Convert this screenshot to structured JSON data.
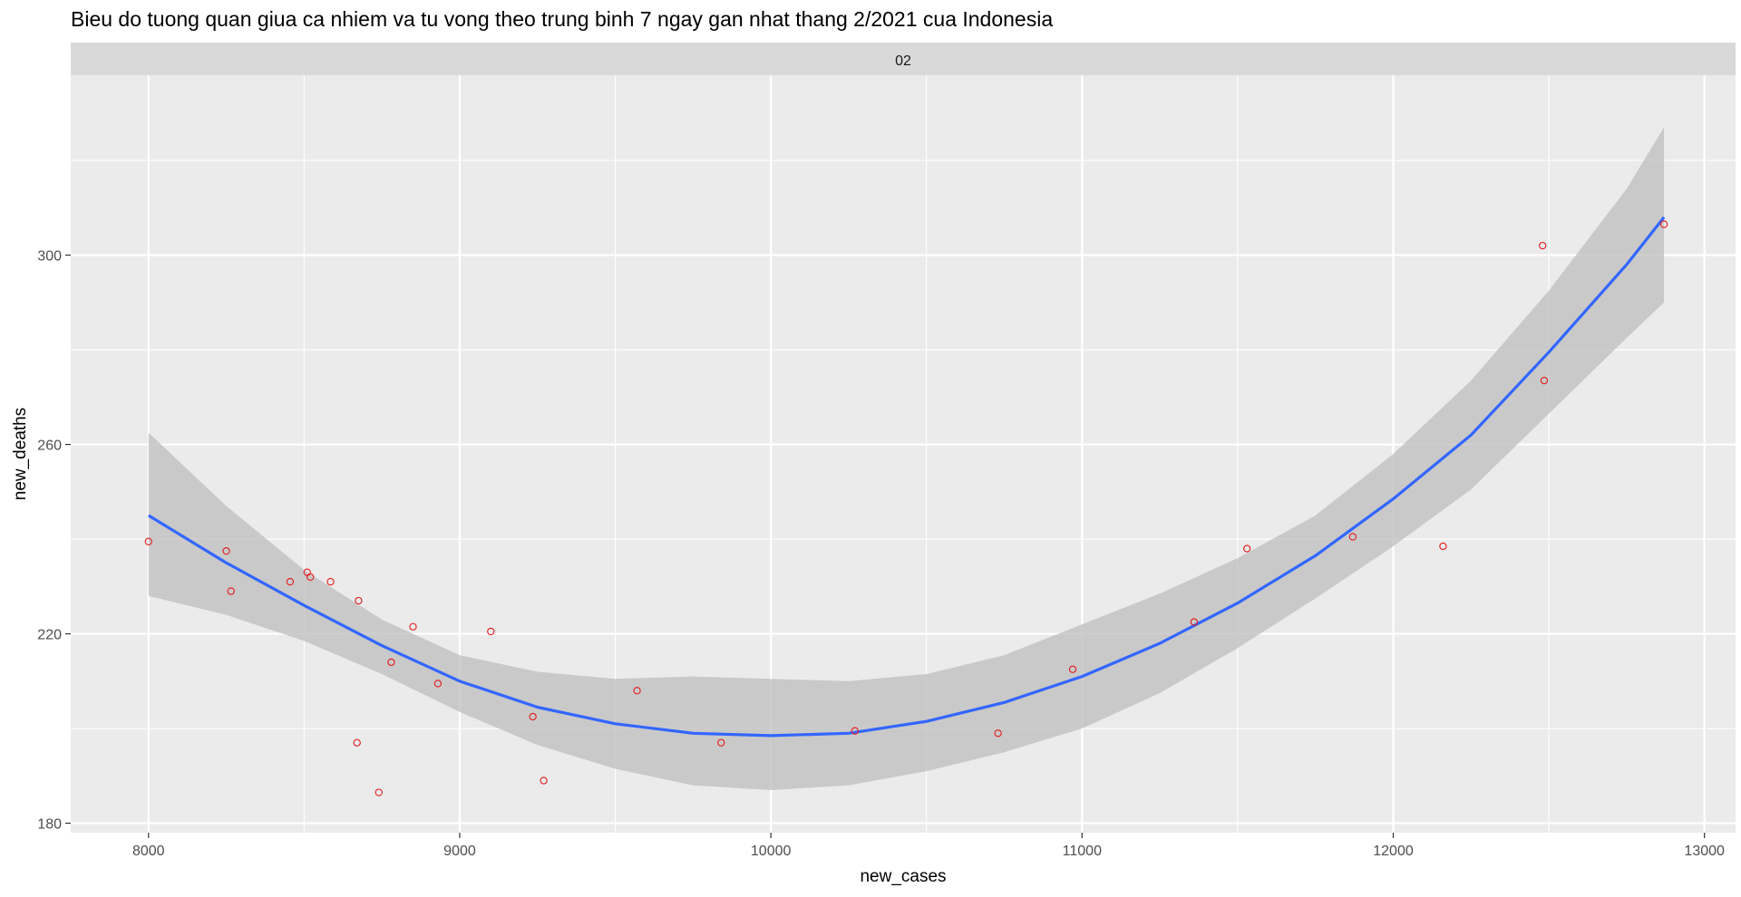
{
  "chart_data": {
    "type": "scatter",
    "title": "Bieu do tuong quan giua ca nhiem va tu vong theo trung binh 7 ngay gan nhat thang 2/2021 cua Indonesia",
    "facet_label": "02",
    "xlabel": "new_cases",
    "ylabel": "new_deaths",
    "xlim": [
      7750,
      13100
    ],
    "ylim": [
      178,
      338
    ],
    "x_ticks": [
      8000,
      9000,
      10000,
      11000,
      12000,
      13000
    ],
    "y_ticks": [
      180,
      220,
      260,
      300
    ],
    "grid": true,
    "colors": {
      "panel_bg": "#ebebeb",
      "strip_bg": "#d9d9d9",
      "grid_major": "#ffffff",
      "points": "#e31a1c",
      "smooth_line": "#3366ff",
      "ribbon": "#bdbdbd"
    },
    "points": [
      {
        "x": 8000,
        "y": 239.5
      },
      {
        "x": 8250,
        "y": 237.5
      },
      {
        "x": 8265,
        "y": 229
      },
      {
        "x": 8455,
        "y": 231
      },
      {
        "x": 8510,
        "y": 233
      },
      {
        "x": 8520,
        "y": 232
      },
      {
        "x": 8585,
        "y": 231
      },
      {
        "x": 8670,
        "y": 197
      },
      {
        "x": 8675,
        "y": 227
      },
      {
        "x": 8740,
        "y": 186.5
      },
      {
        "x": 8780,
        "y": 214
      },
      {
        "x": 8850,
        "y": 221.5
      },
      {
        "x": 8930,
        "y": 209.5
      },
      {
        "x": 9100,
        "y": 220.5
      },
      {
        "x": 9235,
        "y": 202.5
      },
      {
        "x": 9270,
        "y": 189
      },
      {
        "x": 9570,
        "y": 208
      },
      {
        "x": 9840,
        "y": 197
      },
      {
        "x": 10270,
        "y": 199.5
      },
      {
        "x": 10730,
        "y": 199
      },
      {
        "x": 10970,
        "y": 212.5
      },
      {
        "x": 11360,
        "y": 222.5
      },
      {
        "x": 11530,
        "y": 238
      },
      {
        "x": 11870,
        "y": 240.5
      },
      {
        "x": 12160,
        "y": 238.5
      },
      {
        "x": 12480,
        "y": 302
      },
      {
        "x": 12485,
        "y": 273.5
      },
      {
        "x": 12870,
        "y": 306.5
      }
    ],
    "smooth": [
      {
        "x": 8000,
        "y": 245,
        "lo": 228,
        "hi": 262.5
      },
      {
        "x": 8250,
        "y": 235,
        "lo": 224,
        "hi": 247
      },
      {
        "x": 8500,
        "y": 226,
        "lo": 218.5,
        "hi": 233.5
      },
      {
        "x": 8750,
        "y": 217.5,
        "lo": 211.5,
        "hi": 223
      },
      {
        "x": 9000,
        "y": 210,
        "lo": 203.5,
        "hi": 215.5
      },
      {
        "x": 9250,
        "y": 204.5,
        "lo": 196.5,
        "hi": 212
      },
      {
        "x": 9500,
        "y": 201,
        "lo": 191.5,
        "hi": 210.5
      },
      {
        "x": 9750,
        "y": 199,
        "lo": 188,
        "hi": 211
      },
      {
        "x": 10000,
        "y": 198.5,
        "lo": 187,
        "hi": 210.5
      },
      {
        "x": 10250,
        "y": 199,
        "lo": 188,
        "hi": 210
      },
      {
        "x": 10500,
        "y": 201.5,
        "lo": 191,
        "hi": 211.5
      },
      {
        "x": 10750,
        "y": 205.5,
        "lo": 195,
        "hi": 215.5
      },
      {
        "x": 11000,
        "y": 211,
        "lo": 200,
        "hi": 222
      },
      {
        "x": 11250,
        "y": 218,
        "lo": 207.5,
        "hi": 228.5
      },
      {
        "x": 11500,
        "y": 226.5,
        "lo": 217,
        "hi": 236
      },
      {
        "x": 11750,
        "y": 236.5,
        "lo": 227.5,
        "hi": 245
      },
      {
        "x": 12000,
        "y": 248.5,
        "lo": 238.5,
        "hi": 258
      },
      {
        "x": 12250,
        "y": 262,
        "lo": 250.5,
        "hi": 273.5
      },
      {
        "x": 12500,
        "y": 279.5,
        "lo": 266.5,
        "hi": 292.5
      },
      {
        "x": 12750,
        "y": 298,
        "lo": 282.5,
        "hi": 314
      },
      {
        "x": 12870,
        "y": 308,
        "lo": 290,
        "hi": 327
      }
    ]
  }
}
